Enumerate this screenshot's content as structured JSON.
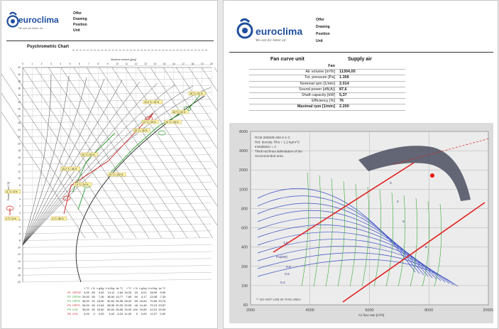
{
  "brand": {
    "name": "euroclima",
    "slogan": "We care for better air",
    "logo_color": "#1f4e9c"
  },
  "left_page": {
    "meta_lines": [
      "Offer",
      "Drawing",
      "Position",
      "Unit"
    ],
    "title": "Psychrometric Chart",
    "moisture_axis_title": "Moisture content [g/kg]",
    "moisture_ticks": [
      "0",
      "1",
      "2",
      "3",
      "4",
      "5",
      "6",
      "7",
      "8",
      "9",
      "10",
      "11",
      "12",
      "13",
      "14",
      "15",
      "16",
      "17",
      "18",
      "19",
      "20"
    ],
    "temp_axis_title": "Temperature [°C]",
    "temp_ticks": [
      "42",
      "40",
      "38",
      "36",
      "34",
      "32",
      "30",
      "28",
      "26",
      "24",
      "22",
      "20",
      "18",
      "16",
      "14",
      "12",
      "10",
      "8",
      "6",
      "4",
      "2",
      "0",
      "-2",
      "-4",
      "-6",
      "-8",
      "-10",
      "-12",
      "-14",
      "-16",
      "-18",
      "-20"
    ],
    "state_labels": [
      "26 °C / 52 %",
      "32.5 °C / 40 %",
      "22 °C / 45 %",
      "28 °C / 45 %",
      "26 °C / 48 %",
      "28 °C / 50 %",
      "20 °C / 50 %",
      "16.2 °C / 48 %",
      "19 °C / 100 %",
      "7.9 °C / 94 %",
      "11 °C / 8 %",
      "4 °C / 8 %",
      "4 °C / 88 %"
    ],
    "table": {
      "headers": [
        "",
        "",
        "t °C",
        "r %",
        "x g/kg",
        "h kJ/kg",
        "tw °C",
        "t °C",
        "r %",
        "x g/kg",
        "h kJ/kg",
        "tw °C"
      ],
      "rows": [
        {
          "id": "P1",
          "code": "CRTW",
          "values": [
            "4,00",
            "80",
            "4,02",
            "14,11",
            "2,64",
            "16,20",
            "44",
            "5,01",
            "28,99",
            "9,90"
          ],
          "color": "#cc2222"
        },
        {
          "id": "P2",
          "code": "CRTW",
          "values": [
            "20,00",
            "50",
            "7,26",
            "38,54",
            "13,77",
            "7,80",
            "94",
            "4,17",
            "23,36",
            "7,33"
          ],
          "color": "#2a9a2a"
        },
        {
          "id": "P3",
          "code": "CRTS",
          "values": [
            "35,00",
            "52",
            "18,50",
            "82,64",
            "26,55",
            "28,20",
            "69",
            "16,64",
            "70,84",
            "23,70"
          ],
          "color": "#2a9a2a"
        },
        {
          "id": "P4",
          "code": "CRTS",
          "values": [
            "26,00",
            "60",
            "12,64",
            "58,36",
            "20,33",
            "32,90",
            "46",
            "14,46",
            "70,13",
            "23,57"
          ],
          "color": "#cc2222"
        },
        {
          "id": "P5",
          "code": "CH1",
          "values": [
            "35,00",
            "52",
            "18,50",
            "82,64",
            "26,55",
            "15,00",
            "100",
            "10,65",
            "42,01",
            "15,00"
          ],
          "color": "#2a9a2a"
        },
        {
          "id": "P6",
          "code": "CH1",
          "values": [
            "4,00",
            "0",
            "0,00",
            "4,02",
            "-3,23",
            "11,00",
            "0",
            "0,00",
            "11,07",
            "0,92"
          ],
          "color": "#cc2222"
        }
      ]
    }
  },
  "right_page": {
    "meta_lines": [
      "Offer",
      "Drawing",
      "Position",
      "Unit"
    ],
    "fan_header_left": "Fan curve unit",
    "fan_header_right": "Supply air",
    "fan_table": [
      {
        "label": "Fan",
        "value": "",
        "bold": true
      },
      {
        "label": "Air volume [m³/h]",
        "value": "11304,00",
        "bold": false
      },
      {
        "label": "Tot. pressure [Pa]",
        "value": "1.306",
        "bold": false
      },
      {
        "label": "Nominal rpm [1/min]",
        "value": "2.014",
        "bold": false
      },
      {
        "label": "Sound power [dB(A)]",
        "value": "87,6",
        "bold": false
      },
      {
        "label": "Shaft capacity [kW]",
        "value": "5,37",
        "bold": false
      },
      {
        "label": "Efficiency [%]",
        "value": "76",
        "bold": false
      },
      {
        "label": "Maximal rpm [1/min]",
        "value": "2.200",
        "bold": true
      }
    ],
    "chart": {
      "y_ticks": [
        "4000",
        "3000",
        "2000",
        "1000",
        "800",
        "600",
        "400",
        "200",
        "100",
        "60"
      ],
      "x_ticks": [
        "2000",
        "4000",
        "5000",
        "8000",
        "20000"
      ],
      "x_title": "Air flow rate [m³/h]",
      "notes": [
        "RCM 28/50/B-450-2-1-C",
        "Ref. density: Rho = 1.2 kg/m^3",
        "Installation = A",
        "Thick red lines delimitation of the",
        "recommended area"
      ],
      "footer_note": "** DO NOT USE IN THIS AREA",
      "curve_labels": [
        "Pa(kW)",
        "1.5",
        "0.8",
        "0.6",
        "0.4",
        "3",
        "4",
        "5",
        "8"
      ],
      "colors": {
        "curve": "#3a4fc4",
        "efficiency": "#29a329",
        "limit": "#e02020",
        "dark_area": "#4a4f60",
        "point": "#ee1111"
      }
    }
  }
}
